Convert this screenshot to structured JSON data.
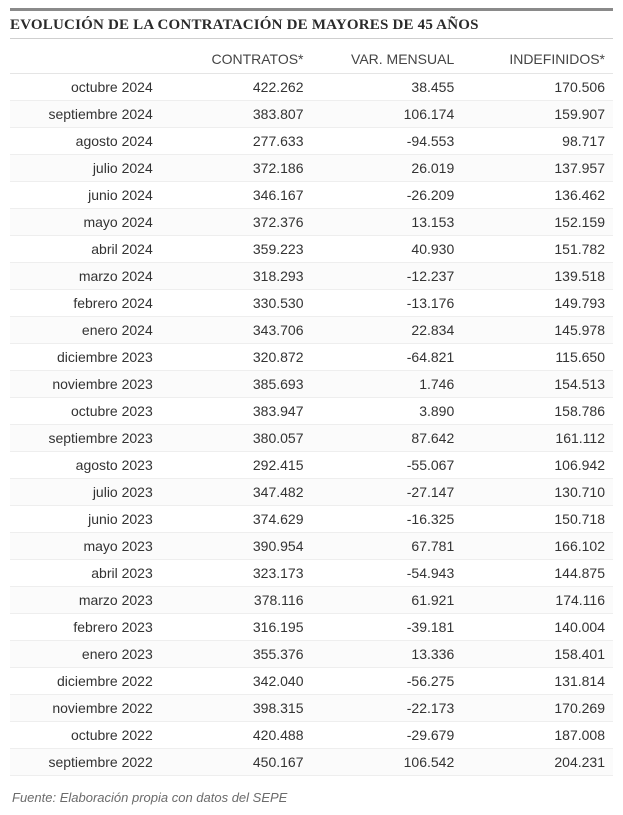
{
  "title": "EVOLUCIÓN DE LA CONTRATACIÓN DE MAYORES DE 45 AÑOS",
  "source": "Fuente: Elaboración propia con datos del SEPE",
  "table": {
    "columns": [
      "",
      "CONTRATOS*",
      "VAR. MENSUAL",
      "INDEFINIDOS*"
    ],
    "alignment": [
      "right",
      "right",
      "right",
      "right"
    ],
    "rows": [
      {
        "period": "octubre 2024",
        "contratos": "422.262",
        "var": "38.455",
        "indef": "170.506"
      },
      {
        "period": "septiembre 2024",
        "contratos": "383.807",
        "var": "106.174",
        "indef": "159.907"
      },
      {
        "period": "agosto 2024",
        "contratos": "277.633",
        "var": "-94.553",
        "indef": "98.717"
      },
      {
        "period": "julio 2024",
        "contratos": "372.186",
        "var": "26.019",
        "indef": "137.957"
      },
      {
        "period": "junio 2024",
        "contratos": "346.167",
        "var": "-26.209",
        "indef": "136.462"
      },
      {
        "period": "mayo 2024",
        "contratos": "372.376",
        "var": "13.153",
        "indef": "152.159"
      },
      {
        "period": "abril 2024",
        "contratos": "359.223",
        "var": "40.930",
        "indef": "151.782"
      },
      {
        "period": "marzo 2024",
        "contratos": "318.293",
        "var": "-12.237",
        "indef": "139.518"
      },
      {
        "period": "febrero 2024",
        "contratos": "330.530",
        "var": "-13.176",
        "indef": "149.793"
      },
      {
        "period": "enero 2024",
        "contratos": "343.706",
        "var": "22.834",
        "indef": "145.978"
      },
      {
        "period": "diciembre 2023",
        "contratos": "320.872",
        "var": "-64.821",
        "indef": "115.650"
      },
      {
        "period": "noviembre 2023",
        "contratos": "385.693",
        "var": "1.746",
        "indef": "154.513"
      },
      {
        "period": "octubre 2023",
        "contratos": "383.947",
        "var": "3.890",
        "indef": "158.786"
      },
      {
        "period": "septiembre 2023",
        "contratos": "380.057",
        "var": "87.642",
        "indef": "161.112"
      },
      {
        "period": "agosto 2023",
        "contratos": "292.415",
        "var": "-55.067",
        "indef": "106.942"
      },
      {
        "period": "julio 2023",
        "contratos": "347.482",
        "var": "-27.147",
        "indef": "130.710"
      },
      {
        "period": "junio 2023",
        "contratos": "374.629",
        "var": "-16.325",
        "indef": "150.718"
      },
      {
        "period": "mayo 2023",
        "contratos": "390.954",
        "var": "67.781",
        "indef": "166.102"
      },
      {
        "period": "abril 2023",
        "contratos": "323.173",
        "var": "-54.943",
        "indef": "144.875"
      },
      {
        "period": "marzo 2023",
        "contratos": "378.116",
        "var": "61.921",
        "indef": "174.116"
      },
      {
        "period": "febrero 2023",
        "contratos": "316.195",
        "var": "-39.181",
        "indef": "140.004"
      },
      {
        "period": "enero 2023",
        "contratos": "355.376",
        "var": "13.336",
        "indef": "158.401"
      },
      {
        "period": "diciembre 2022",
        "contratos": "342.040",
        "var": "-56.275",
        "indef": "131.814"
      },
      {
        "period": "noviembre 2022",
        "contratos": "398.315",
        "var": "-22.173",
        "indef": "170.269"
      },
      {
        "period": "octubre 2022",
        "contratos": "420.488",
        "var": "-29.679",
        "indef": "187.008"
      },
      {
        "period": "septiembre 2022",
        "contratos": "450.167",
        "var": "106.542",
        "indef": "204.231"
      }
    ],
    "colors": {
      "title_border_top": "#8a8a8a",
      "title_border_bottom": "#cfcfcf",
      "row_border": "#eeeeee",
      "text": "#333333",
      "source_text": "#6b6b6b",
      "background": "#ffffff"
    },
    "font_sizes": {
      "title": 15,
      "header": 14,
      "cell": 14,
      "source": 13
    }
  }
}
